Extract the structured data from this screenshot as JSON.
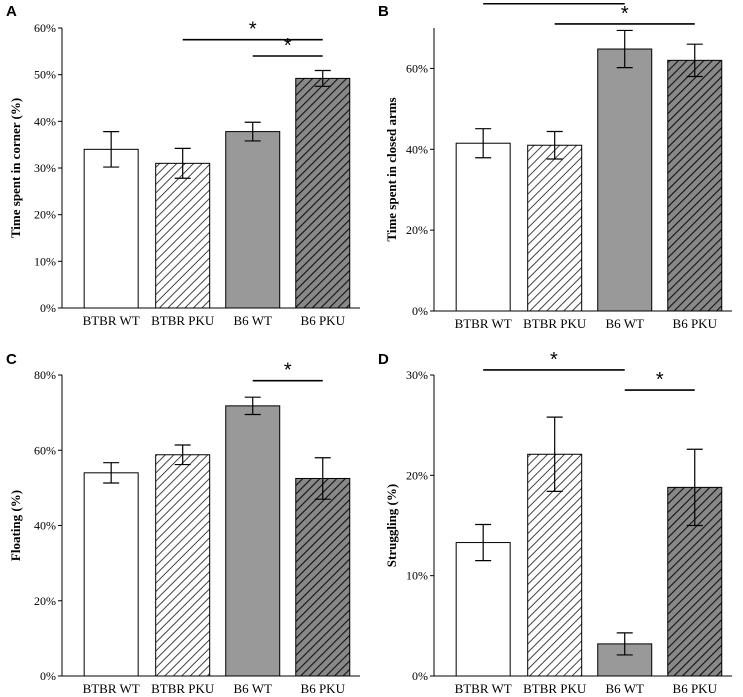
{
  "styles": {
    "WT_open": {
      "fill": "#ffffff",
      "hatch": false
    },
    "PKU_light": {
      "fill": "#ffffff",
      "hatch": true,
      "hatch_color": "#444444"
    },
    "WT_gray": {
      "fill": "#999999",
      "hatch": false
    },
    "PKU_dark": {
      "fill": "#888888",
      "hatch": true,
      "hatch_color": "#111111"
    }
  },
  "bar_styles": [
    "WT_open",
    "PKU_light",
    "WT_gray",
    "PKU_dark"
  ],
  "chart_data": [
    {
      "panel": "A",
      "type": "bar",
      "categories": [
        "BTBR WT",
        "BTBR PKU",
        "B6 WT",
        "B6 PKU"
      ],
      "values": [
        34,
        31,
        37.8,
        49.2
      ],
      "errors": [
        3.8,
        3.2,
        2.0,
        1.7
      ],
      "ylabel": "Time spent in corner (%)",
      "ylim": [
        0,
        60
      ],
      "yticks": [
        0,
        10,
        20,
        30,
        40,
        50,
        60
      ],
      "ytick_labels": [
        "0%",
        "10%",
        "20%",
        "30%",
        "40%",
        "50%",
        "60%"
      ],
      "significance": [
        {
          "from": 1,
          "to": 3,
          "y": 57.5,
          "label": "*"
        },
        {
          "from": 2,
          "to": 3,
          "y": 54,
          "label": "*"
        }
      ]
    },
    {
      "panel": "B",
      "type": "bar",
      "categories": [
        "BTBR WT",
        "BTBR PKU",
        "B6 WT",
        "B6 PKU"
      ],
      "values": [
        41.5,
        41,
        64.8,
        62
      ],
      "errors": [
        3.6,
        3.4,
        4.6,
        4.0
      ],
      "ylabel": "Time spent in closed arms",
      "ylim": [
        0,
        70
      ],
      "yticks": [
        0,
        20,
        40,
        60
      ],
      "ytick_labels": [
        "0%",
        "20%",
        "40%",
        "60%"
      ],
      "significance": [
        {
          "from": 0,
          "to": 2,
          "y": 76,
          "label": "*"
        },
        {
          "from": 1,
          "to": 3,
          "y": 71,
          "label": "*"
        }
      ]
    },
    {
      "panel": "C",
      "type": "bar",
      "categories": [
        "BTBR WT",
        "BTBR PKU",
        "B6 WT",
        "B6 PKU"
      ],
      "values": [
        54,
        58.8,
        71.8,
        52.5
      ],
      "errors": [
        2.7,
        2.6,
        2.3,
        5.5
      ],
      "ylabel": "Floating (%)",
      "ylim": [
        0,
        80
      ],
      "yticks": [
        0,
        20,
        40,
        60,
        80
      ],
      "ytick_labels": [
        "0%",
        "20%",
        "40%",
        "60%",
        "80%"
      ],
      "significance": [
        {
          "from": 2,
          "to": 3,
          "y": 78.5,
          "label": "*"
        }
      ]
    },
    {
      "panel": "D",
      "type": "bar",
      "categories": [
        "BTBR WT",
        "BTBR PKU",
        "B6 WT",
        "B6 PKU"
      ],
      "values": [
        13.3,
        22.1,
        3.2,
        18.8
      ],
      "errors": [
        1.8,
        3.7,
        1.1,
        3.8
      ],
      "ylabel": "Struggling (%)",
      "ylim": [
        0,
        30
      ],
      "yticks": [
        0,
        10,
        20,
        30
      ],
      "ytick_labels": [
        "0%",
        "10%",
        "20%",
        "30%"
      ],
      "significance": [
        {
          "from": 0,
          "to": 2,
          "y": 30.5,
          "label": "*"
        },
        {
          "from": 2,
          "to": 3,
          "y": 28.5,
          "label": "*"
        }
      ]
    }
  ]
}
